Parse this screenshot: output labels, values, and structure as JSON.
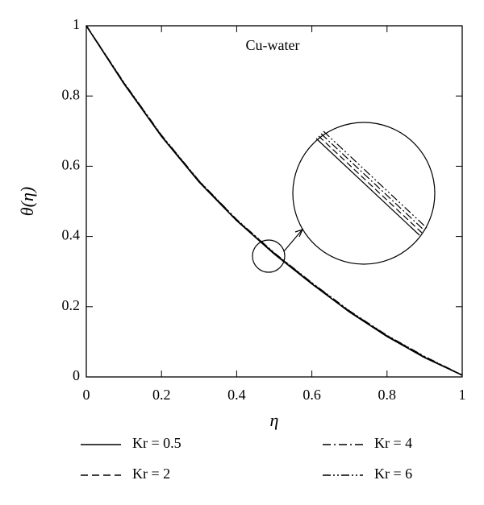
{
  "chart_data": {
    "type": "line",
    "annotation": "Cu-water",
    "x_label": "η",
    "y_label": "θ(η)",
    "x": [
      0,
      0.1,
      0.2,
      0.3,
      0.4,
      0.5,
      0.6,
      0.7,
      0.8,
      0.9,
      1
    ],
    "series": [
      {
        "name": "Kr = 0.5",
        "color": "#000000",
        "dash": "solid",
        "values": [
          1,
          0.835,
          0.685,
          0.555,
          0.445,
          0.35,
          0.265,
          0.185,
          0.115,
          0.055,
          0.005
        ]
      },
      {
        "name": "Kr = 2",
        "color": "#000000",
        "dash": "dashed",
        "values": [
          1,
          0.836,
          0.686,
          0.556,
          0.446,
          0.351,
          0.266,
          0.186,
          0.116,
          0.056,
          0.005
        ]
      },
      {
        "name": "Kr = 4",
        "color": "#000000",
        "dash": "dashdot",
        "values": [
          1,
          0.837,
          0.687,
          0.557,
          0.447,
          0.352,
          0.267,
          0.187,
          0.117,
          0.057,
          0.005
        ]
      },
      {
        "name": "Kr = 6",
        "color": "#000000",
        "dash": "dashdotdot",
        "values": [
          1,
          0.838,
          0.688,
          0.558,
          0.448,
          0.353,
          0.268,
          0.188,
          0.118,
          0.058,
          0.005
        ]
      }
    ],
    "xlim": [
      0,
      1
    ],
    "ylim": [
      0,
      1
    ],
    "xticks": [
      0,
      0.2,
      0.4,
      0.6,
      0.8,
      1
    ],
    "yticks": [
      0,
      0.2,
      0.4,
      0.6,
      0.8,
      1
    ],
    "grid": false
  }
}
